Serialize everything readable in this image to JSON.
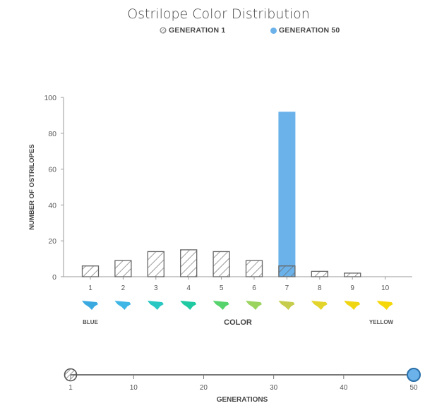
{
  "chart_data": {
    "type": "bar",
    "title": "Ostrilope Color Distribution",
    "legend": {
      "placement": "top-center",
      "items": [
        {
          "label": "GENERATION 1",
          "style": "hatched",
          "color": "#888888"
        },
        {
          "label": "GENERATION 50",
          "style": "solid",
          "color": "#6cb2ea"
        }
      ]
    },
    "categories": [
      "1",
      "2",
      "3",
      "4",
      "5",
      "6",
      "7",
      "8",
      "9",
      "10"
    ],
    "series": [
      {
        "name": "GENERATION 1",
        "values": [
          6,
          9,
          14,
          15,
          14,
          9,
          6,
          3,
          2,
          0
        ]
      },
      {
        "name": "GENERATION 50",
        "values": [
          0,
          0,
          0,
          0,
          0,
          0,
          92,
          0,
          0,
          0
        ]
      }
    ],
    "ylabel": "NUMBER OF OSTRILOPES",
    "xlabel": "COLOR",
    "ylim": [
      0,
      100
    ],
    "yticks": [
      0,
      20,
      40,
      60,
      80,
      100
    ],
    "x_end_labels": {
      "left": "BLUE",
      "right": "YELLOW"
    },
    "color_swatches": [
      "#3aa9e0",
      "#3fb6e6",
      "#29c7c2",
      "#1fc9a2",
      "#57d36e",
      "#9ad45e",
      "#c6cc4c",
      "#e2d42a",
      "#f0d512",
      "#f5d70a"
    ],
    "grid": false
  },
  "slider": {
    "label": "GENERATIONS",
    "min": 1,
    "max": 50,
    "value": 50,
    "start_value": 1,
    "ticks": [
      "1",
      "10",
      "20",
      "30",
      "40",
      "50"
    ],
    "tick_values": [
      1,
      10,
      20,
      30,
      40,
      50
    ],
    "accent": "#6cb2ea"
  }
}
